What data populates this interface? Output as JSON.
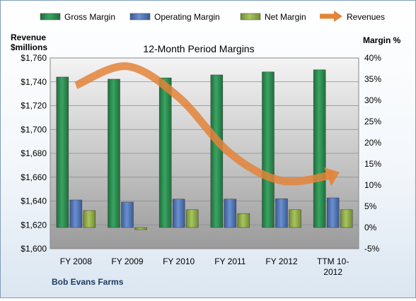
{
  "chart_data": {
    "type": "bar",
    "title": "12-Month Period Margins",
    "company": "Bob Evans Farms",
    "left_axis": {
      "label_line1": "Revenue",
      "label_line2": "$millions",
      "min": 1600,
      "max": 1760,
      "step": 20,
      "tick_labels": [
        "$1,600",
        "$1,620",
        "$1,640",
        "$1,660",
        "$1,680",
        "$1,700",
        "$1,720",
        "$1,740",
        "$1,760"
      ]
    },
    "right_axis": {
      "label": "Margin %",
      "min": -5,
      "max": 40,
      "step": 5,
      "tick_labels": [
        "-5%",
        "0%",
        "5%",
        "10%",
        "15%",
        "20%",
        "25%",
        "30%",
        "35%",
        "40%"
      ]
    },
    "categories": [
      "FY 2008",
      "FY 2009",
      "FY 2010",
      "FY 2011",
      "FY 2012",
      "TTM 10-2012"
    ],
    "series": [
      {
        "name": "Gross Margin",
        "color": "#2e8b4f",
        "values": [
          35.5,
          35.0,
          35.3,
          36.0,
          36.7,
          37.2
        ]
      },
      {
        "name": "Operating Margin",
        "color": "#4f73b5",
        "values": [
          6.5,
          6.0,
          6.7,
          6.7,
          6.8,
          7.0
        ]
      },
      {
        "name": "Net Margin",
        "color": "#8fae4a",
        "values": [
          4.0,
          -0.5,
          4.2,
          3.3,
          4.2,
          4.2
        ]
      }
    ],
    "revenue_series": {
      "name": "Revenues",
      "color": "#e3843a",
      "values": [
        1737,
        1753,
        1727,
        1680,
        1657,
        1662
      ]
    },
    "legend": {
      "placement": "top",
      "items": [
        {
          "label": "Gross Margin",
          "type": "bar",
          "color": "#2e8b4f"
        },
        {
          "label": "Operating Margin",
          "type": "bar",
          "color": "#4f73b5"
        },
        {
          "label": "Net Margin",
          "type": "bar",
          "color": "#8fae4a"
        },
        {
          "label": "Revenues",
          "type": "arrow",
          "color": "#e3843a"
        }
      ]
    },
    "grid": true
  }
}
